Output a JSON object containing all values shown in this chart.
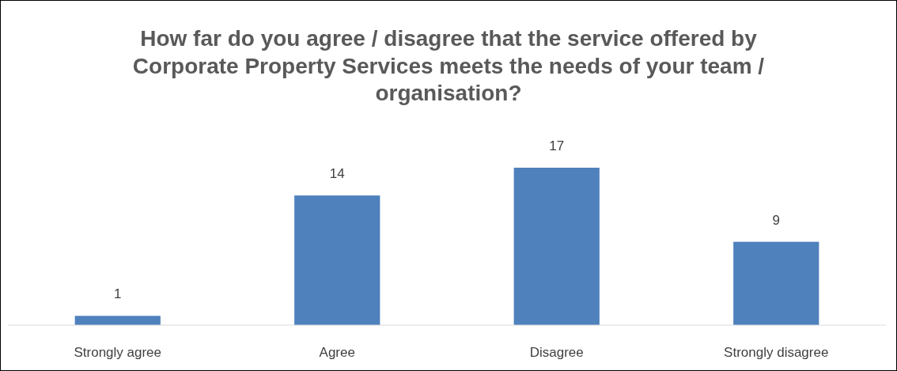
{
  "chart_data": {
    "type": "bar",
    "title": "How far do you agree / disagree that the service offered by Corporate Property Services meets the needs of your team / organisation?",
    "categories": [
      "Strongly agree",
      "Agree",
      "Disagree",
      "Strongly disagree"
    ],
    "values": [
      1,
      14,
      17,
      9
    ],
    "color": "#4f81bd",
    "data_labels": true
  }
}
